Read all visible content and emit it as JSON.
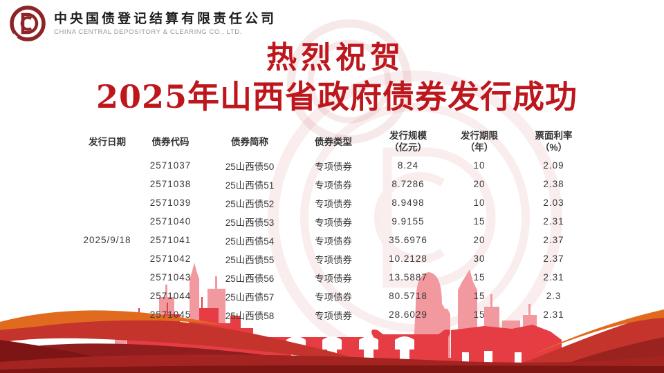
{
  "brand": {
    "logo_icon": "ccdc-logo",
    "company_zh": "中央国债登记结算有限责任公司",
    "company_en": "CHINA CENTRAL DEPOSITORY & CLEARING CO., LTD."
  },
  "banner": {
    "line1": "热烈祝贺",
    "line2": "2025年山西省政府债券发行成功",
    "color": "#bd171d"
  },
  "table": {
    "issue_date": "2025/9/18",
    "columns": [
      {
        "key": "issue_date",
        "label": "发行日期",
        "label2": ""
      },
      {
        "key": "code",
        "label": "债券代码",
        "label2": ""
      },
      {
        "key": "short_name",
        "label": "债券简称",
        "label2": ""
      },
      {
        "key": "type",
        "label": "债券类型",
        "label2": ""
      },
      {
        "key": "scale",
        "label": "发行规模",
        "label2": "（亿元）"
      },
      {
        "key": "term",
        "label": "发行期限",
        "label2": "（年）"
      },
      {
        "key": "coupon",
        "label": "票面利率",
        "label2": "（%）"
      }
    ],
    "rows": [
      {
        "code": "2571037",
        "short_name": "25山西债50",
        "type": "专项债券",
        "scale": "8.24",
        "term": "10",
        "coupon": "2.09"
      },
      {
        "code": "2571038",
        "short_name": "25山西债51",
        "type": "专项债券",
        "scale": "8.7286",
        "term": "20",
        "coupon": "2.38"
      },
      {
        "code": "2571039",
        "short_name": "25山西债52",
        "type": "专项债券",
        "scale": "8.9498",
        "term": "10",
        "coupon": "2.03"
      },
      {
        "code": "2571040",
        "short_name": "25山西债53",
        "type": "专项债券",
        "scale": "9.9155",
        "term": "15",
        "coupon": "2.31"
      },
      {
        "code": "2571041",
        "short_name": "25山西债54",
        "type": "专项债券",
        "scale": "35.6976",
        "term": "20",
        "coupon": "2.37"
      },
      {
        "code": "2571042",
        "short_name": "25山西债55",
        "type": "专项债券",
        "scale": "10.2128",
        "term": "30",
        "coupon": "2.37"
      },
      {
        "code": "2571043",
        "short_name": "25山西债56",
        "type": "专项债券",
        "scale": "13.5887",
        "term": "15",
        "coupon": "2.31"
      },
      {
        "code": "2571044",
        "short_name": "25山西债57",
        "type": "专项债券",
        "scale": "80.5718",
        "term": "15",
        "coupon": "2.3"
      },
      {
        "code": "2571045",
        "short_name": "25山西债58",
        "type": "专项债券",
        "scale": "28.6029",
        "term": "15",
        "coupon": "2.31"
      }
    ]
  },
  "artwork": {
    "skyline_red": "#e63c44",
    "skyline_pink": "#f2989f",
    "ribbon_orange": "#e06a1d",
    "ribbon_crimson": "#c5342c",
    "ribbon_dark": "#8c1d17",
    "watermark_tint": "#c85a60",
    "logo_color": "#8d2427"
  }
}
